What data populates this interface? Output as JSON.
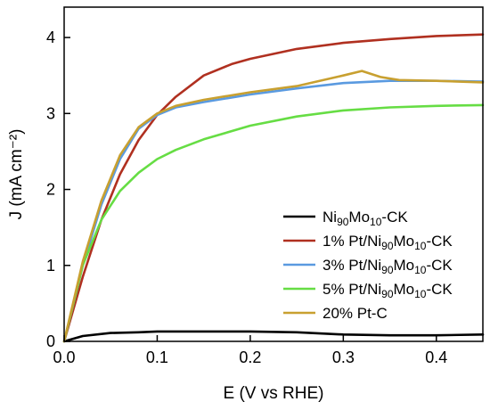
{
  "chart_data": {
    "type": "line",
    "xlabel": "E (V vs RHE)",
    "ylabel": "J (mA cm⁻²)",
    "xlim": [
      0.0,
      0.45
    ],
    "ylim": [
      0,
      4.4
    ],
    "xticks": [
      0.0,
      0.1,
      0.2,
      0.3,
      0.4
    ],
    "xtick_labels": [
      "0.0",
      "0.1",
      "0.2",
      "0.3",
      "0.4"
    ],
    "yticks": [
      0,
      1,
      2,
      3,
      4
    ],
    "ytick_labels": [
      "0",
      "1",
      "2",
      "3",
      "4"
    ],
    "grid": false,
    "legend_position": "bottom-right",
    "series": [
      {
        "name": "Ni90Mo10-CK",
        "legend": {
          "a": "Ni",
          "s1": "90",
          "b": "Mo",
          "s2": "10",
          "c": "-CK"
        },
        "color": "#000000",
        "x": [
          0.0,
          0.02,
          0.05,
          0.08,
          0.1,
          0.15,
          0.2,
          0.25,
          0.3,
          0.35,
          0.4,
          0.45
        ],
        "y": [
          0.0,
          0.07,
          0.11,
          0.12,
          0.13,
          0.13,
          0.13,
          0.12,
          0.09,
          0.08,
          0.08,
          0.09
        ]
      },
      {
        "name": "1% Pt/Ni90Mo10-CK",
        "legend": {
          "a": "1% Pt/Ni",
          "s1": "90",
          "b": "Mo",
          "s2": "10",
          "c": "-CK"
        },
        "color": "#b03020",
        "x": [
          0.0,
          0.02,
          0.04,
          0.06,
          0.08,
          0.1,
          0.12,
          0.15,
          0.18,
          0.2,
          0.25,
          0.3,
          0.35,
          0.4,
          0.45
        ],
        "y": [
          0.0,
          0.85,
          1.6,
          2.2,
          2.65,
          2.98,
          3.22,
          3.5,
          3.65,
          3.72,
          3.85,
          3.93,
          3.98,
          4.02,
          4.04
        ]
      },
      {
        "name": "3% Pt/Ni90Mo10-CK",
        "legend": {
          "a": "3% Pt/Ni",
          "s1": "90",
          "b": "Mo",
          "s2": "10",
          "c": "-CK"
        },
        "color": "#5a9ae0",
        "x": [
          0.0,
          0.02,
          0.04,
          0.06,
          0.08,
          0.1,
          0.12,
          0.15,
          0.2,
          0.25,
          0.3,
          0.35,
          0.4,
          0.45
        ],
        "y": [
          0.0,
          1.0,
          1.8,
          2.4,
          2.8,
          2.98,
          3.08,
          3.15,
          3.25,
          3.33,
          3.4,
          3.43,
          3.43,
          3.42
        ]
      },
      {
        "name": "5% Pt/Ni90Mo10-CK",
        "legend": {
          "a": "5% Pt/Ni",
          "s1": "90",
          "b": "Mo",
          "s2": "10",
          "c": "-CK"
        },
        "color": "#66dd44",
        "x": [
          0.0,
          0.02,
          0.04,
          0.06,
          0.08,
          0.1,
          0.12,
          0.15,
          0.2,
          0.25,
          0.3,
          0.35,
          0.4,
          0.45
        ],
        "y": [
          0.0,
          1.0,
          1.6,
          1.98,
          2.22,
          2.4,
          2.52,
          2.66,
          2.84,
          2.96,
          3.04,
          3.08,
          3.1,
          3.11
        ]
      },
      {
        "name": "20% Pt-C",
        "legend": {
          "a": "20% Pt-C",
          "s1": "",
          "b": "",
          "s2": "",
          "c": ""
        },
        "color": "#c8a030",
        "x": [
          0.0,
          0.02,
          0.04,
          0.06,
          0.08,
          0.1,
          0.12,
          0.15,
          0.2,
          0.25,
          0.3,
          0.32,
          0.34,
          0.36,
          0.4,
          0.45
        ],
        "y": [
          0.0,
          1.05,
          1.85,
          2.45,
          2.82,
          3.0,
          3.1,
          3.18,
          3.28,
          3.36,
          3.5,
          3.56,
          3.48,
          3.44,
          3.43,
          3.41
        ]
      }
    ]
  }
}
